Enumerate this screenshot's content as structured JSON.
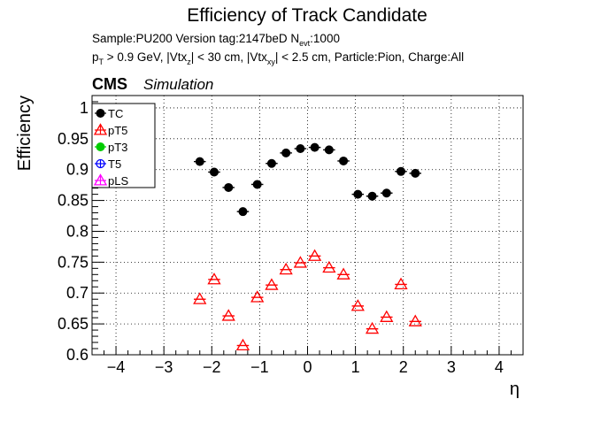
{
  "chart_data": {
    "type": "scatter",
    "title": "Efficiency of Track Candidate",
    "info": {
      "sample_prefix": "Sample:PU200   Version tag:2147beD  N",
      "nevt_sub": "evt",
      "nevt_suffix": ":1000",
      "pt_p": "p",
      "pt_sub": "T",
      "cut_a": " > 0.9 GeV, |Vtx",
      "z_sub": "z",
      "cut_b": "| < 30 cm, |Vtx",
      "xy_sub": "xy",
      "cut_c": "| < 2.5 cm, Particle:Pion, Charge:All"
    },
    "cms_label": "CMS",
    "simulation_label": "Simulation",
    "xlabel": "η",
    "ylabel": "Efficiency",
    "xlim": [
      -4.5,
      4.5
    ],
    "ylim": [
      0.6,
      1.02
    ],
    "x_ticks": [
      -4,
      -3,
      -2,
      -1,
      0,
      1,
      2,
      3,
      4
    ],
    "x_tick_labels": [
      "−4",
      "−3",
      "−2",
      "−1",
      "0",
      "1",
      "2",
      "3",
      "4"
    ],
    "y_ticks": [
      0.6,
      0.65,
      0.7,
      0.75,
      0.8,
      0.85,
      0.9,
      0.95,
      1.0
    ],
    "y_tick_labels": [
      "0.6",
      "0.65",
      "0.7",
      "0.75",
      "0.8",
      "0.85",
      "0.9",
      "0.95",
      "1"
    ],
    "grid": true,
    "legend_position": "top-left",
    "x_half_width": 0.125,
    "series": [
      {
        "name": "TC",
        "color": "#000000",
        "marker": "filled-circle",
        "x": [
          -2.25,
          -1.95,
          -1.65,
          -1.35,
          -1.05,
          -0.75,
          -0.45,
          -0.15,
          0.15,
          0.45,
          0.75,
          1.05,
          1.35,
          1.65,
          1.95,
          2.25
        ],
        "y": [
          0.913,
          0.896,
          0.871,
          0.832,
          0.876,
          0.91,
          0.927,
          0.934,
          0.936,
          0.932,
          0.914,
          0.86,
          0.857,
          0.862,
          0.897,
          0.894
        ]
      },
      {
        "name": "pT5",
        "color": "#ff0000",
        "marker": "open-triangle",
        "x": [
          -2.25,
          -1.95,
          -1.65,
          -1.35,
          -1.05,
          -0.75,
          -0.45,
          -0.15,
          0.15,
          0.45,
          0.75,
          1.05,
          1.35,
          1.65,
          1.95,
          2.25
        ],
        "y": [
          0.69,
          0.722,
          0.663,
          0.615,
          0.693,
          0.713,
          0.738,
          0.749,
          0.76,
          0.741,
          0.73,
          0.679,
          0.642,
          0.661,
          0.714,
          0.654
        ]
      },
      {
        "name": "pT3",
        "color": "#00cc00",
        "marker": "filled-circle",
        "x": [],
        "y": []
      },
      {
        "name": "T5",
        "color": "#0000ff",
        "marker": "open-circle",
        "x": [],
        "y": []
      },
      {
        "name": "pLS",
        "color": "#ff00ff",
        "marker": "open-triangle",
        "x": [],
        "y": []
      }
    ]
  }
}
